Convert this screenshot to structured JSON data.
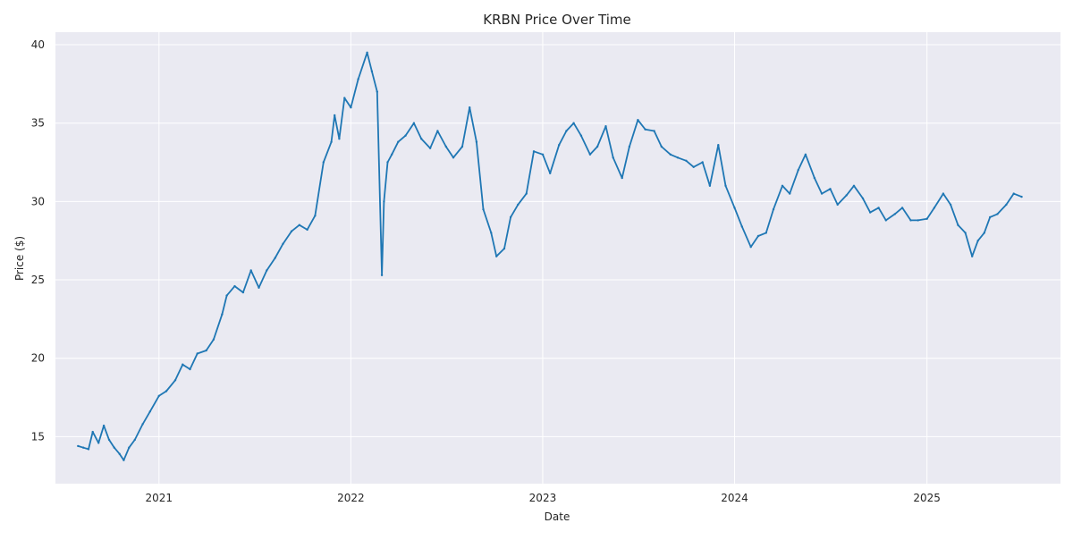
{
  "chart_data": {
    "type": "line",
    "title": "KRBN Price Over Time",
    "xlabel": "Date",
    "ylabel": "Price ($)",
    "x_ticks": [
      "2021",
      "2022",
      "2023",
      "2024",
      "2025"
    ],
    "y_ticks": [
      15,
      20,
      25,
      30,
      35,
      40
    ],
    "xlim": [
      "2020-06-18",
      "2025-09-12"
    ],
    "ylim": [
      12.0,
      40.8
    ],
    "grid": true,
    "colors": {
      "line": "#1f77b4",
      "plot_bg": "#eaeaf2",
      "grid": "#ffffff"
    },
    "series": [
      {
        "x": [
          "2020-07-31",
          "2020-08-10",
          "2020-08-20",
          "2020-08-28",
          "2020-09-08",
          "2020-09-18",
          "2020-09-28",
          "2020-10-08",
          "2020-10-18",
          "2020-10-26",
          "2020-11-05",
          "2020-11-16",
          "2020-12-01",
          "2020-12-15",
          "2021-01-01",
          "2021-01-15",
          "2021-02-01",
          "2021-02-15",
          "2021-03-01",
          "2021-03-15",
          "2021-04-01",
          "2021-04-15",
          "2021-05-01",
          "2021-05-10",
          "2021-05-25",
          "2021-06-10",
          "2021-06-25",
          "2021-07-10",
          "2021-07-25",
          "2021-08-10",
          "2021-08-25",
          "2021-09-10",
          "2021-09-25",
          "2021-10-10",
          "2021-10-25",
          "2021-11-10",
          "2021-11-25",
          "2021-12-01",
          "2021-12-10",
          "2021-12-20",
          "2022-01-01",
          "2022-01-15",
          "2022-02-01",
          "2022-02-10",
          "2022-02-20",
          "2022-03-01",
          "2022-03-05",
          "2022-03-12",
          "2022-03-20",
          "2022-04-01",
          "2022-04-15",
          "2022-05-01",
          "2022-05-15",
          "2022-06-01",
          "2022-06-15",
          "2022-07-01",
          "2022-07-15",
          "2022-08-01",
          "2022-08-15",
          "2022-08-28",
          "2022-09-10",
          "2022-09-25",
          "2022-10-05",
          "2022-10-20",
          "2022-11-01",
          "2022-11-15",
          "2022-12-01",
          "2022-12-15",
          "2023-01-01",
          "2023-01-15",
          "2023-02-01",
          "2023-02-15",
          "2023-03-01",
          "2023-03-15",
          "2023-04-01",
          "2023-04-15",
          "2023-05-01",
          "2023-05-15",
          "2023-06-01",
          "2023-06-15",
          "2023-07-01",
          "2023-07-15",
          "2023-08-01",
          "2023-08-15",
          "2023-09-01",
          "2023-09-15",
          "2023-10-01",
          "2023-10-15",
          "2023-11-01",
          "2023-11-15",
          "2023-12-01",
          "2023-12-15",
          "2024-01-01",
          "2024-01-15",
          "2024-02-01",
          "2024-02-15",
          "2024-03-01",
          "2024-03-15",
          "2024-04-01",
          "2024-04-15",
          "2024-05-01",
          "2024-05-15",
          "2024-06-01",
          "2024-06-15",
          "2024-07-01",
          "2024-07-15",
          "2024-08-01",
          "2024-08-15",
          "2024-09-01",
          "2024-09-15",
          "2024-10-01",
          "2024-10-15",
          "2024-11-01",
          "2024-11-15",
          "2024-12-01",
          "2024-12-15",
          "2025-01-01",
          "2025-01-15",
          "2025-02-01",
          "2025-02-15",
          "2025-03-01",
          "2025-03-15",
          "2025-03-28",
          "2025-04-08",
          "2025-04-20",
          "2025-05-01",
          "2025-05-15",
          "2025-06-01",
          "2025-06-15",
          "2025-06-30"
        ],
        "y": [
          14.4,
          14.3,
          14.2,
          15.3,
          14.6,
          15.7,
          14.8,
          14.3,
          13.9,
          13.5,
          14.3,
          14.8,
          15.8,
          16.6,
          17.6,
          17.9,
          18.6,
          19.6,
          19.3,
          20.3,
          20.5,
          21.2,
          22.8,
          24.0,
          24.6,
          24.2,
          25.6,
          24.5,
          25.6,
          26.4,
          27.3,
          28.1,
          28.5,
          28.2,
          29.1,
          32.5,
          33.8,
          35.5,
          34.0,
          36.6,
          36.0,
          37.8,
          39.5,
          38.3,
          37.0,
          25.3,
          30.0,
          32.5,
          33.0,
          33.8,
          34.2,
          35.0,
          34.0,
          33.4,
          34.5,
          33.5,
          32.8,
          33.5,
          36.0,
          33.8,
          29.5,
          28.0,
          26.5,
          27.0,
          29.0,
          29.8,
          30.5,
          33.2,
          33.0,
          31.8,
          33.6,
          34.5,
          35.0,
          34.2,
          33.0,
          33.5,
          34.8,
          32.8,
          31.5,
          33.5,
          35.2,
          34.6,
          34.5,
          33.5,
          33.0,
          32.8,
          32.6,
          32.2,
          32.5,
          31.0,
          33.6,
          31.0,
          29.6,
          28.4,
          27.1,
          27.8,
          28.0,
          29.5,
          31.0,
          30.5,
          32.0,
          33.0,
          31.5,
          30.5,
          30.8,
          29.8,
          30.4,
          31.0,
          30.2,
          29.3,
          29.6,
          28.8,
          29.2,
          29.6,
          28.8,
          28.8,
          28.9,
          29.6,
          30.5,
          29.8,
          28.5,
          28.0,
          26.5,
          27.5,
          28.0,
          29.0,
          29.2,
          29.8,
          30.5,
          30.3
        ]
      }
    ]
  }
}
